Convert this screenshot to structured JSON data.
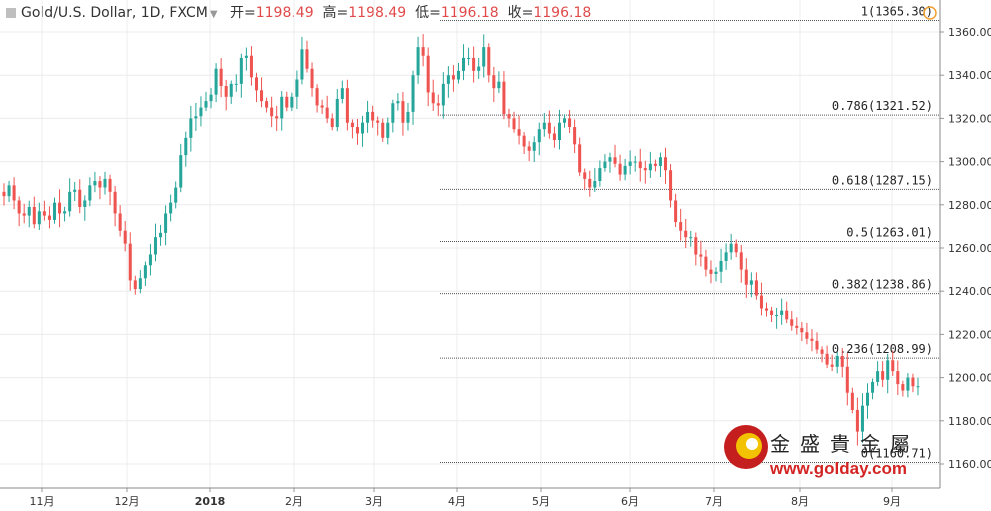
{
  "header": {
    "symbol": "Gold/U.S. Dollar, 1D, FXCM",
    "open_label": "开=",
    "open": "1198.49",
    "high_label": "高=",
    "high": "1198.49",
    "low_label": "低=",
    "low": "1196.18",
    "close_label": "收=",
    "close": "1196.18"
  },
  "watermark": {
    "name_cn": "金盛貴金屬",
    "url": "www.golday.com"
  },
  "colors": {
    "up": "#26a69a",
    "down": "#ef5350",
    "grid": "#ececec",
    "fib_line": "#555555",
    "text": "#333333",
    "header_value": "#e04a4a",
    "logo_red": "#d32424"
  },
  "chart_data": {
    "type": "candlestick",
    "title": "Gold/U.S. Dollar, 1D, FXCM",
    "xlabel": "",
    "ylabel": "",
    "ylim": [
      1155,
      1370
    ],
    "y_ticks": [
      "1160.00",
      "1180.00",
      "1200.00",
      "1220.00",
      "1240.00",
      "1260.00",
      "1280.00",
      "1300.00",
      "1320.00",
      "1340.00",
      "1360.00"
    ],
    "x_ticks": [
      "11月",
      "12月",
      "2018",
      "2月",
      "3月",
      "4月",
      "5月",
      "6月",
      "7月",
      "8月",
      "9月"
    ],
    "fibonacci": [
      {
        "ratio": "1",
        "label": "1(1365.30)",
        "value": 1365.3
      },
      {
        "ratio": "0.786",
        "label": "0.786(1321.52)",
        "value": 1321.52
      },
      {
        "ratio": "0.618",
        "label": "0.618(1287.15)",
        "value": 1287.15
      },
      {
        "ratio": "0.5",
        "label": "0.5(1263.01)",
        "value": 1263.01
      },
      {
        "ratio": "0.382",
        "label": "0.382(1238.86)",
        "value": 1238.86
      },
      {
        "ratio": "0.236",
        "label": "0.236(1208.99)",
        "value": 1208.99
      },
      {
        "ratio": "0",
        "label": "0(1160.71)",
        "value": 1160.71
      }
    ],
    "closes": [
      1284,
      1289,
      1282,
      1276,
      1275,
      1279,
      1271,
      1277,
      1275,
      1273,
      1281,
      1276,
      1277,
      1286,
      1287,
      1279,
      1282,
      1289,
      1291,
      1288,
      1292,
      1286,
      1276,
      1268,
      1262,
      1245,
      1241,
      1246,
      1252,
      1257,
      1265,
      1267,
      1276,
      1281,
      1288,
      1303,
      1311,
      1320,
      1321,
      1325,
      1328,
      1331,
      1343,
      1335,
      1330,
      1336,
      1336,
      1348,
      1349,
      1339,
      1333,
      1328,
      1325,
      1321,
      1320,
      1330,
      1325,
      1330,
      1338,
      1352,
      1343,
      1334,
      1326,
      1325,
      1320,
      1316,
      1329,
      1334,
      1318,
      1316,
      1313,
      1318,
      1323,
      1319,
      1318,
      1311,
      1318,
      1327,
      1328,
      1318,
      1323,
      1340,
      1353,
      1349,
      1332,
      1327,
      1326,
      1336,
      1340,
      1338,
      1342,
      1348,
      1348,
      1342,
      1344,
      1353,
      1340,
      1334,
      1337,
      1322,
      1320,
      1315,
      1312,
      1307,
      1305,
      1309,
      1315,
      1318,
      1313,
      1310,
      1318,
      1320,
      1316,
      1308,
      1295,
      1292,
      1288,
      1291,
      1297,
      1300,
      1302,
      1299,
      1294,
      1298,
      1300,
      1300,
      1297,
      1296,
      1299,
      1298,
      1302,
      1296,
      1282,
      1272,
      1268,
      1265,
      1265,
      1257,
      1256,
      1250,
      1248,
      1249,
      1254,
      1258,
      1262,
      1258,
      1250,
      1243,
      1245,
      1238,
      1232,
      1231,
      1229,
      1229,
      1231,
      1227,
      1224,
      1223,
      1221,
      1218,
      1217,
      1213,
      1211,
      1206,
      1205,
      1210,
      1205,
      1193,
      1185,
      1175,
      1187,
      1193,
      1198,
      1203,
      1199,
      1208,
      1203,
      1197,
      1194,
      1200,
      1196,
      1196
    ]
  }
}
